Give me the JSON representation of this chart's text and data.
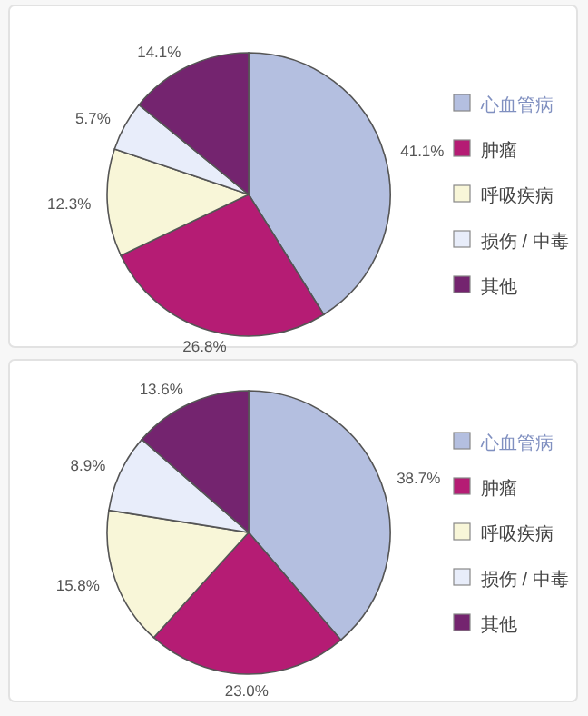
{
  "chart_data": [
    {
      "type": "pie",
      "categories": [
        "心血管病",
        "肿瘤",
        "呼吸疾病",
        "损伤 / 中毒",
        "其他"
      ],
      "values": [
        41.1,
        26.8,
        12.3,
        5.7,
        14.1
      ],
      "value_labels": [
        "41.1%",
        "26.8%",
        "12.3%",
        "5.7%",
        "14.1%"
      ],
      "colors": [
        "#b4bfe0",
        "#b51c74",
        "#f8f6d8",
        "#e8edfa",
        "#74246f"
      ],
      "legend": "right"
    },
    {
      "type": "pie",
      "categories": [
        "心血管病",
        "肿瘤",
        "呼吸疾病",
        "损伤 / 中毒",
        "其他"
      ],
      "values": [
        38.7,
        23.0,
        15.8,
        8.9,
        13.6
      ],
      "value_labels": [
        "38.7%",
        "23.0%",
        "15.8%",
        "8.9%",
        "13.6%"
      ],
      "colors": [
        "#b4bfe0",
        "#b51c74",
        "#f8f6d8",
        "#e8edfa",
        "#74246f"
      ],
      "legend": "right"
    }
  ]
}
